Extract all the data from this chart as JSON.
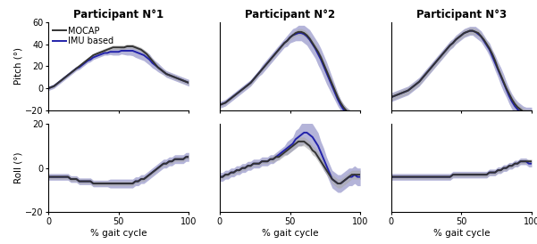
{
  "participants": [
    "Participant N°1",
    "Participant N°2",
    "Participant N°3"
  ],
  "xlabel": "% gait cycle",
  "ylabel_pitch": "Pitch (°)",
  "ylabel_roll": "Roll (°)",
  "mocap_color": "#333333",
  "imu_color": "#2222aa",
  "imu_fill_color": "#7777bb",
  "mocap_fill_color": "#aaaaaa",
  "legend_labels": [
    "MOCAP",
    "IMU based"
  ],
  "x": [
    0,
    2,
    4,
    6,
    8,
    10,
    12,
    14,
    16,
    18,
    20,
    22,
    24,
    26,
    28,
    30,
    32,
    34,
    36,
    38,
    40,
    42,
    44,
    46,
    48,
    50,
    52,
    54,
    56,
    58,
    60,
    62,
    64,
    66,
    68,
    70,
    72,
    74,
    76,
    78,
    80,
    82,
    84,
    86,
    88,
    90,
    92,
    94,
    96,
    98,
    100
  ],
  "pitch_mocap_mean": [
    [
      0,
      1,
      2,
      4,
      6,
      8,
      10,
      12,
      14,
      16,
      18,
      20,
      22,
      24,
      26,
      28,
      30,
      31,
      32,
      33,
      34,
      35,
      36,
      37,
      37,
      37,
      37,
      37,
      38,
      38,
      38,
      37,
      36,
      35,
      33,
      31,
      28,
      25,
      22,
      19,
      17,
      15,
      13,
      12,
      11,
      10,
      9,
      8,
      7,
      6,
      5
    ],
    [
      -15,
      -14,
      -13,
      -11,
      -9,
      -7,
      -5,
      -3,
      -1,
      1,
      3,
      5,
      8,
      11,
      14,
      17,
      20,
      23,
      26,
      29,
      32,
      35,
      38,
      41,
      43,
      46,
      48,
      50,
      51,
      51,
      50,
      48,
      45,
      41,
      37,
      33,
      28,
      22,
      16,
      10,
      4,
      -2,
      -8,
      -13,
      -17,
      -20,
      -22,
      -24,
      -25,
      -26,
      -26
    ],
    [
      -8,
      -7,
      -6,
      -5,
      -4,
      -3,
      -2,
      0,
      2,
      4,
      6,
      9,
      12,
      15,
      18,
      21,
      24,
      27,
      30,
      33,
      36,
      39,
      41,
      44,
      46,
      48,
      50,
      51,
      52,
      52,
      51,
      50,
      47,
      44,
      40,
      36,
      31,
      25,
      18,
      12,
      6,
      0,
      -5,
      -10,
      -14,
      -17,
      -19,
      -21,
      -22,
      -22,
      -22
    ]
  ],
  "pitch_mocap_std": [
    [
      1,
      1,
      1,
      1,
      1,
      1,
      1,
      1,
      1,
      1,
      1,
      1,
      1.5,
      1.5,
      1.5,
      1.5,
      1.5,
      2,
      2,
      2,
      2,
      2,
      2,
      2,
      2,
      2,
      2,
      2,
      2,
      2,
      2,
      2,
      2,
      2,
      2,
      2,
      2,
      2,
      2,
      2,
      2,
      2,
      2,
      2,
      2,
      2,
      2,
      2,
      2,
      2,
      2
    ],
    [
      1.5,
      1.5,
      1.5,
      1.5,
      1.5,
      1.5,
      1.5,
      1.5,
      1.5,
      1.5,
      2,
      2,
      2,
      2,
      2,
      2,
      2,
      2,
      2,
      2,
      2,
      2,
      2,
      2,
      2.5,
      2.5,
      2.5,
      2.5,
      3,
      3,
      3,
      3,
      3,
      3,
      3,
      3,
      3,
      3,
      3,
      3,
      3,
      3,
      3,
      3,
      3,
      3,
      3,
      3,
      3,
      3,
      3
    ],
    [
      3,
      3,
      3,
      3,
      3,
      3,
      3,
      3,
      3,
      3,
      3,
      3,
      3,
      3,
      3,
      3,
      3,
      3,
      3,
      3,
      3,
      3,
      3,
      3,
      3,
      3,
      3,
      3,
      3,
      3,
      3,
      3,
      3,
      3,
      3,
      3,
      3,
      3,
      3,
      3,
      3,
      3,
      3,
      3,
      3,
      3,
      3,
      3,
      3,
      3,
      3
    ]
  ],
  "pitch_imu_mean": [
    [
      0,
      1,
      2,
      4,
      6,
      8,
      10,
      12,
      14,
      16,
      18,
      19,
      21,
      23,
      25,
      26,
      28,
      29,
      30,
      31,
      32,
      32,
      33,
      33,
      33,
      33,
      34,
      34,
      34,
      34,
      34,
      33,
      32,
      31,
      30,
      28,
      26,
      23,
      21,
      19,
      17,
      15,
      13,
      12,
      11,
      10,
      9,
      8,
      7,
      6,
      5
    ],
    [
      -15,
      -14,
      -13,
      -11,
      -9,
      -7,
      -5,
      -3,
      -1,
      1,
      3,
      5,
      8,
      11,
      14,
      17,
      20,
      23,
      26,
      29,
      32,
      35,
      38,
      41,
      43,
      46,
      48,
      49,
      50,
      50,
      49,
      47,
      44,
      40,
      36,
      31,
      26,
      20,
      14,
      8,
      2,
      -4,
      -10,
      -15,
      -19,
      -22,
      -24,
      -26,
      -27,
      -27,
      -27
    ],
    [
      -8,
      -7,
      -6,
      -5,
      -4,
      -3,
      -2,
      0,
      2,
      4,
      6,
      9,
      12,
      15,
      18,
      21,
      24,
      27,
      30,
      33,
      36,
      39,
      41,
      44,
      46,
      48,
      50,
      51,
      52,
      52,
      51,
      49,
      47,
      43,
      39,
      35,
      29,
      23,
      17,
      11,
      5,
      -1,
      -7,
      -12,
      -16,
      -19,
      -21,
      -23,
      -24,
      -24,
      -24
    ]
  ],
  "pitch_imu_std": [
    [
      2,
      2,
      2,
      2,
      2,
      2,
      2,
      2,
      2,
      2,
      2,
      2,
      2,
      2,
      2,
      2,
      2,
      2,
      2,
      2,
      2,
      2,
      2.5,
      3,
      3,
      3,
      3,
      3.5,
      4,
      4,
      4.5,
      5,
      5,
      5,
      5,
      5,
      5,
      4.5,
      4,
      4,
      3.5,
      3,
      3,
      3,
      3,
      3,
      3,
      3,
      3,
      3,
      3
    ],
    [
      3,
      3,
      3,
      3,
      3,
      3,
      3,
      3,
      3,
      3,
      3,
      3,
      3,
      3,
      3,
      4,
      4,
      4,
      4,
      4,
      4,
      4,
      4,
      4,
      5,
      5,
      6,
      6,
      7,
      7,
      8,
      8,
      9,
      9,
      9,
      10,
      10,
      10,
      10,
      9,
      8,
      7,
      6,
      5,
      5,
      5,
      5,
      5,
      5,
      5,
      5
    ],
    [
      4,
      4,
      4,
      4,
      4,
      4,
      4,
      4,
      4,
      4,
      4,
      4,
      4,
      4,
      4,
      4,
      4,
      4,
      4,
      4,
      4,
      4,
      4,
      4,
      4,
      4,
      4,
      4,
      4,
      4,
      5,
      5,
      5,
      5,
      5,
      6,
      6,
      7,
      7,
      8,
      8,
      7,
      7,
      7,
      7,
      7,
      7,
      7,
      7,
      7,
      7
    ]
  ],
  "roll_mocap_mean": [
    [
      -4,
      -4,
      -4,
      -4,
      -4,
      -4,
      -4,
      -4,
      -5,
      -5,
      -5,
      -6,
      -6,
      -6,
      -6,
      -6,
      -7,
      -7,
      -7,
      -7,
      -7,
      -7,
      -7,
      -7,
      -7,
      -7,
      -7,
      -7,
      -7,
      -7,
      -7,
      -6,
      -6,
      -5,
      -5,
      -4,
      -3,
      -2,
      -1,
      0,
      1,
      2,
      2,
      3,
      3,
      4,
      4,
      4,
      4,
      5,
      5
    ],
    [
      -4,
      -4,
      -3,
      -3,
      -2,
      -2,
      -1,
      -1,
      0,
      0,
      1,
      1,
      2,
      2,
      2,
      3,
      3,
      3,
      4,
      4,
      5,
      5,
      6,
      7,
      8,
      9,
      10,
      11,
      12,
      12,
      12,
      11,
      10,
      8,
      7,
      5,
      3,
      1,
      -1,
      -3,
      -5,
      -6,
      -7,
      -7,
      -6,
      -5,
      -4,
      -3,
      -3,
      -3,
      -3
    ],
    [
      -4,
      -4,
      -4,
      -4,
      -4,
      -4,
      -4,
      -4,
      -4,
      -4,
      -4,
      -4,
      -4,
      -4,
      -4,
      -4,
      -4,
      -4,
      -4,
      -4,
      -4,
      -4,
      -3,
      -3,
      -3,
      -3,
      -3,
      -3,
      -3,
      -3,
      -3,
      -3,
      -3,
      -3,
      -3,
      -2,
      -2,
      -2,
      -1,
      -1,
      0,
      0,
      1,
      1,
      2,
      2,
      3,
      3,
      3,
      3,
      3
    ]
  ],
  "roll_mocap_std": [
    [
      1,
      1,
      1,
      1,
      1,
      1,
      1,
      1,
      1,
      1,
      1,
      1,
      1,
      1,
      1,
      1,
      1,
      1,
      1,
      1,
      1,
      1,
      1,
      1,
      1,
      1,
      1,
      1,
      1,
      1,
      1,
      1,
      1,
      1,
      1,
      1,
      1,
      1,
      1,
      1,
      1,
      1,
      1,
      1,
      1,
      1,
      1,
      1,
      1,
      1,
      1
    ],
    [
      1,
      1,
      1,
      1,
      1,
      1,
      1,
      1,
      1,
      1,
      1,
      1,
      1,
      1,
      1,
      1,
      1,
      1,
      1,
      1.5,
      1.5,
      1.5,
      1.5,
      1.5,
      2,
      2,
      2,
      2,
      2,
      2,
      2,
      2,
      2,
      2,
      2,
      2,
      2,
      2,
      2,
      2,
      2,
      2,
      2,
      2,
      2,
      2,
      2,
      2,
      2,
      2,
      2
    ],
    [
      1,
      1,
      1,
      1,
      1,
      1,
      1,
      1,
      1,
      1,
      1,
      1,
      1,
      1,
      1,
      1,
      1,
      1,
      1,
      1,
      1,
      1,
      1,
      1,
      1,
      1,
      1,
      1,
      1,
      1,
      1,
      1,
      1,
      1,
      1,
      1,
      1,
      1,
      1,
      1,
      1,
      1,
      1,
      1,
      1,
      1,
      1,
      1,
      1,
      1,
      1
    ]
  ],
  "roll_imu_mean": [
    [
      -4,
      -4,
      -4,
      -4,
      -4,
      -4,
      -4,
      -4,
      -5,
      -5,
      -5,
      -6,
      -6,
      -6,
      -6,
      -6,
      -7,
      -7,
      -7,
      -7,
      -7,
      -7,
      -7,
      -7,
      -7,
      -7,
      -7,
      -7,
      -7,
      -7,
      -7,
      -6,
      -6,
      -5,
      -5,
      -4,
      -3,
      -2,
      -1,
      0,
      1,
      2,
      2,
      3,
      3,
      4,
      4,
      4,
      4,
      5,
      5
    ],
    [
      -4,
      -4,
      -3,
      -3,
      -2,
      -2,
      -1,
      -1,
      0,
      0,
      1,
      1,
      2,
      2,
      2,
      3,
      3,
      3,
      4,
      4,
      5,
      6,
      7,
      8,
      9,
      10,
      11,
      13,
      14,
      15,
      16,
      16,
      15,
      14,
      12,
      10,
      7,
      4,
      1,
      -2,
      -5,
      -6,
      -7,
      -7,
      -6,
      -5,
      -4,
      -4,
      -3,
      -4,
      -4
    ],
    [
      -4,
      -4,
      -4,
      -4,
      -4,
      -4,
      -4,
      -4,
      -4,
      -4,
      -4,
      -4,
      -4,
      -4,
      -4,
      -4,
      -4,
      -4,
      -4,
      -4,
      -4,
      -4,
      -3,
      -3,
      -3,
      -3,
      -3,
      -3,
      -3,
      -3,
      -3,
      -3,
      -3,
      -3,
      -3,
      -2,
      -2,
      -2,
      -1,
      -1,
      0,
      0,
      1,
      1,
      2,
      2,
      3,
      3,
      3,
      2,
      2
    ]
  ],
  "roll_imu_std": [
    [
      1.5,
      1.5,
      1.5,
      1.5,
      1.5,
      1.5,
      1.5,
      1.5,
      1.5,
      1.5,
      1.5,
      1.5,
      1.5,
      1.5,
      1.5,
      1.5,
      1.5,
      1.5,
      1.5,
      1.5,
      1.5,
      1.5,
      2,
      2,
      2,
      2,
      2,
      2,
      2,
      2,
      2,
      2,
      2,
      2,
      2,
      2,
      2,
      2,
      2,
      2,
      2,
      2,
      2,
      2,
      2,
      2,
      2,
      2,
      2,
      2,
      2
    ],
    [
      2,
      2,
      2,
      2,
      2,
      2,
      2,
      2,
      2,
      2,
      2,
      2,
      2,
      2,
      2,
      2,
      2,
      2,
      2,
      2,
      2,
      2,
      2,
      2,
      3,
      3,
      3,
      4,
      4,
      5,
      5,
      6,
      6,
      6,
      6,
      6,
      5,
      5,
      4,
      4,
      4,
      4,
      4,
      4,
      4,
      4,
      4,
      4,
      4,
      4,
      4
    ],
    [
      1.5,
      1.5,
      1.5,
      1.5,
      1.5,
      1.5,
      1.5,
      1.5,
      1.5,
      1.5,
      1.5,
      1.5,
      1.5,
      1.5,
      1.5,
      1.5,
      1.5,
      1.5,
      1.5,
      1.5,
      1.5,
      1.5,
      1.5,
      1.5,
      1.5,
      1.5,
      1.5,
      1.5,
      1.5,
      1.5,
      1.5,
      1.5,
      1.5,
      1.5,
      1.5,
      1.5,
      1.5,
      1.5,
      1.5,
      1.5,
      1.5,
      1.5,
      1.5,
      1.5,
      1.5,
      1.5,
      1.5,
      1.5,
      1.5,
      1.5,
      1.5
    ]
  ],
  "pitch_ylim": [
    -20,
    60
  ],
  "roll_ylim": [
    -20,
    20
  ],
  "pitch_yticks": [
    -20,
    0,
    20,
    40,
    60
  ],
  "roll_yticks": [
    -20,
    0,
    20
  ],
  "xticks": [
    0,
    50,
    100
  ],
  "title_fontsize": 8.5,
  "label_fontsize": 7.5,
  "tick_fontsize": 7,
  "legend_fontsize": 7
}
